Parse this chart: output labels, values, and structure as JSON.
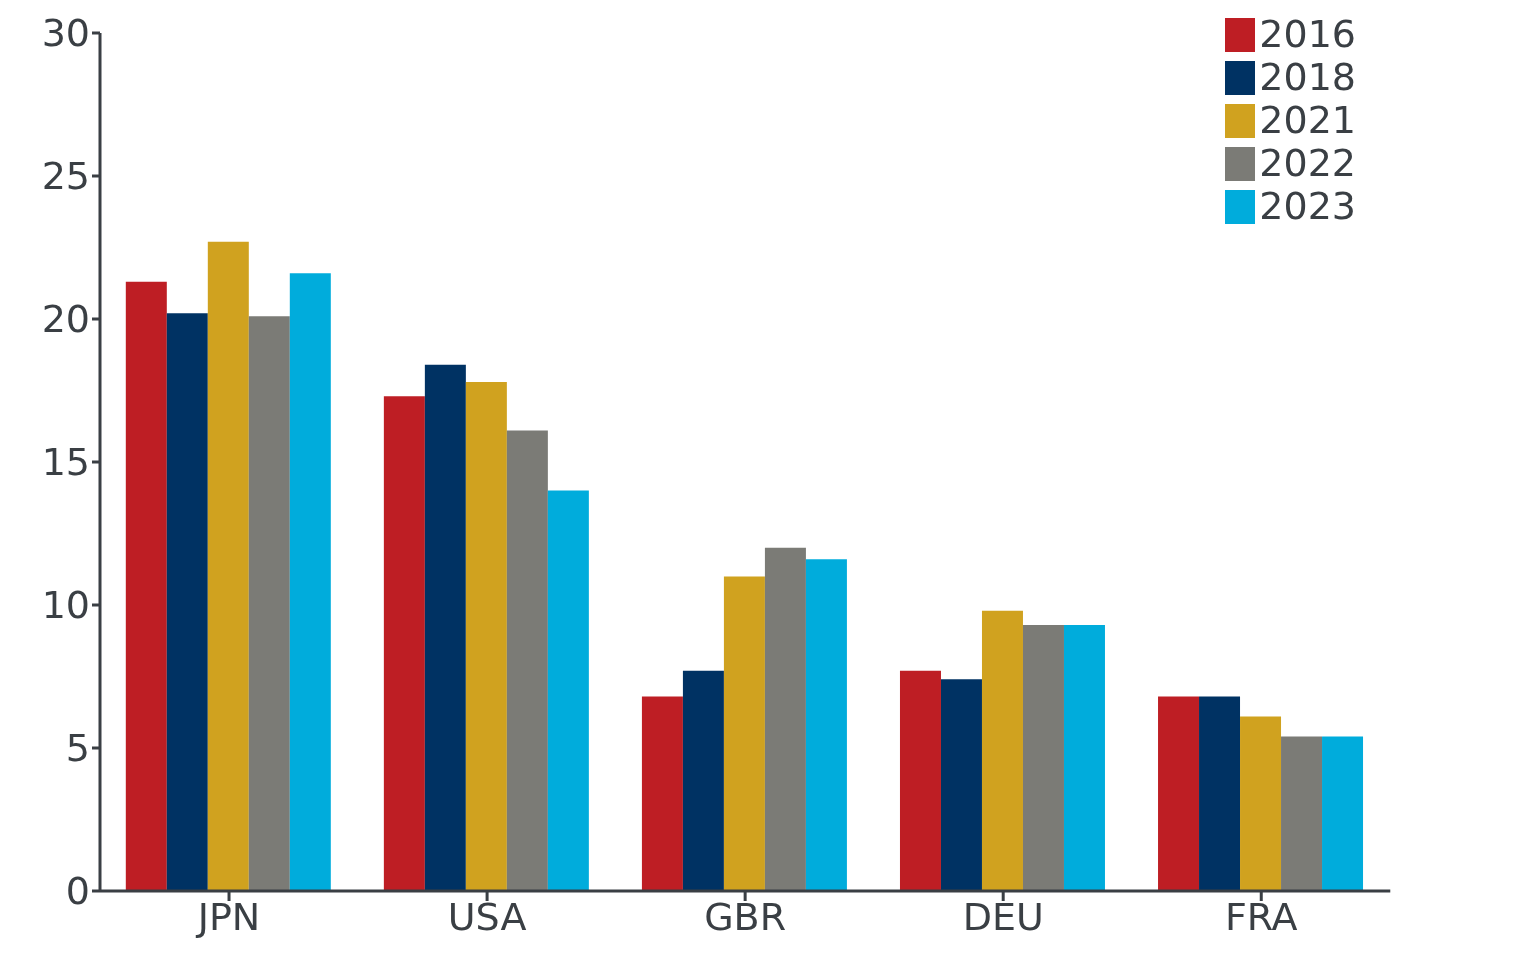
{
  "chart_data": {
    "type": "bar",
    "categories": [
      "JPN",
      "USA",
      "GBR",
      "DEU",
      "FRA"
    ],
    "series": [
      {
        "name": "2016",
        "color": "#be1e24",
        "values": [
          21.3,
          17.3,
          6.8,
          7.7,
          6.8
        ]
      },
      {
        "name": "2018",
        "color": "#003263",
        "values": [
          20.2,
          18.4,
          7.7,
          7.4,
          6.8
        ]
      },
      {
        "name": "2021",
        "color": "#d0a21f",
        "values": [
          22.7,
          17.8,
          11,
          9.8,
          6.1
        ]
      },
      {
        "name": "2022",
        "color": "#7b7b76",
        "values": [
          20.1,
          16.1,
          12,
          9.3,
          5.4
        ]
      },
      {
        "name": "2023",
        "color": "#00acdc",
        "values": [
          21.6,
          14,
          11.6,
          9.3,
          5.4
        ]
      }
    ],
    "ylim": [
      0,
      30
    ],
    "yticks": [
      0,
      5,
      10,
      15,
      20,
      25,
      30
    ],
    "grid": false,
    "legend": "top right"
  }
}
